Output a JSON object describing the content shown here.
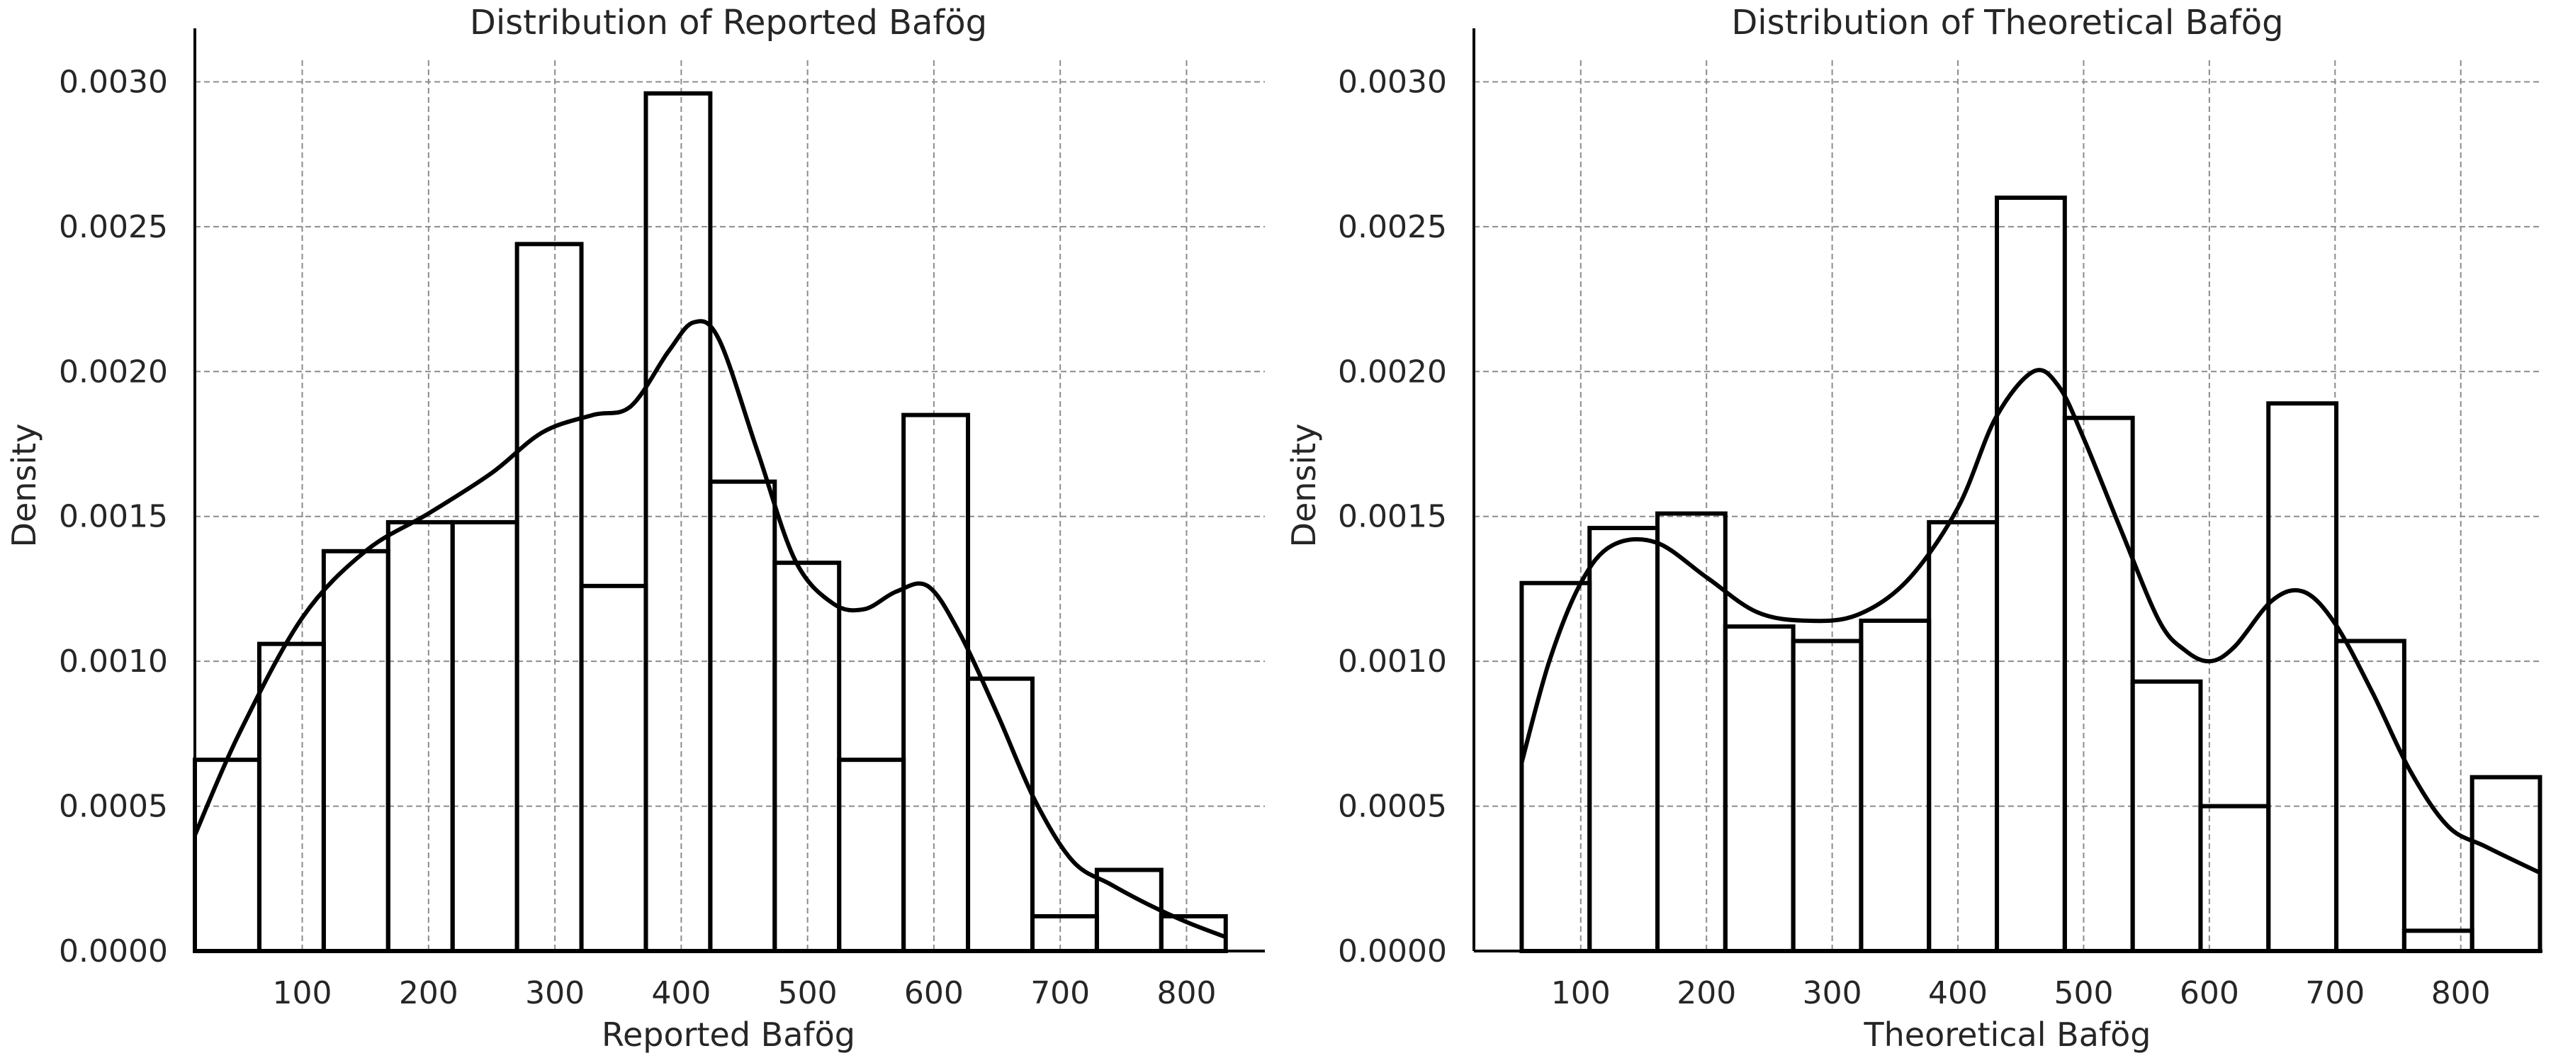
{
  "chart_data": [
    {
      "type": "bar",
      "subtype": "histogram-with-kde",
      "title": "Distribution of Reported Bafög",
      "xlabel": "Reported Bafög",
      "ylabel": "Density",
      "xlim": [
        15,
        862
      ],
      "ylim": [
        0,
        0.00305
      ],
      "xticks": [
        100,
        200,
        300,
        400,
        500,
        600,
        700,
        800
      ],
      "xtick_labels": [
        "100",
        "200",
        "300",
        "400",
        "500",
        "600",
        "700",
        "800"
      ],
      "yticks": [
        0,
        0.0005,
        0.001,
        0.0015,
        0.002,
        0.0025,
        0.003
      ],
      "ytick_labels": [
        "0.0000",
        "0.0005",
        "0.0010",
        "0.0015",
        "0.0020",
        "0.0025",
        "0.0030"
      ],
      "grid": true,
      "bin_edges": [
        15,
        66,
        117,
        168,
        219,
        270,
        321,
        372,
        423,
        474,
        525,
        576,
        627,
        678,
        729,
        780,
        831
      ],
      "values": [
        0.00066,
        0.00106,
        0.00138,
        0.00148,
        0.00148,
        0.00244,
        0.00126,
        0.00296,
        0.00162,
        0.00134,
        0.00066,
        0.00185,
        0.00094,
        0.00012,
        0.00028,
        0.00012
      ],
      "kde": {
        "x": [
          15,
          50,
          100,
          150,
          200,
          250,
          290,
          330,
          360,
          390,
          410,
          430,
          460,
          490,
          520,
          545,
          570,
          595,
          620,
          650,
          680,
          710,
          740,
          770,
          800,
          830
        ],
        "y": [
          0.0004,
          0.00075,
          0.00115,
          0.00138,
          0.00151,
          0.00165,
          0.00179,
          0.00185,
          0.00188,
          0.00207,
          0.00217,
          0.00211,
          0.00173,
          0.00135,
          0.0012,
          0.00118,
          0.00124,
          0.00126,
          0.0011,
          0.00082,
          0.00052,
          0.00031,
          0.00023,
          0.00016,
          0.0001,
          5e-05
        ]
      }
    },
    {
      "type": "bar",
      "subtype": "histogram-with-kde",
      "title": "Distribution of Theoretical Bafög",
      "xlabel": "Theoretical Bafög",
      "ylabel": "Density",
      "xlim": [
        15,
        865
      ],
      "ylim": [
        0,
        0.00305
      ],
      "xticks": [
        100,
        200,
        300,
        400,
        500,
        600,
        700,
        800
      ],
      "xtick_labels": [
        "100",
        "200",
        "300",
        "400",
        "500",
        "600",
        "700",
        "800"
      ],
      "yticks": [
        0,
        0.0005,
        0.001,
        0.0015,
        0.002,
        0.0025,
        0.003
      ],
      "ytick_labels": [
        "0.0000",
        "0.0005",
        "0.0010",
        "0.0015",
        "0.0020",
        "0.0025",
        "0.0030"
      ],
      "grid": true,
      "bin_edges": [
        53,
        107,
        161,
        215,
        269,
        323,
        377,
        431,
        485,
        539,
        593,
        647,
        701,
        755,
        809,
        863
      ],
      "values": [
        0.00127,
        0.00146,
        0.00151,
        0.00112,
        0.00107,
        0.00114,
        0.00148,
        0.0026,
        0.00184,
        0.00093,
        0.0005,
        0.00189,
        0.00107,
        7e-05,
        0.0006
      ],
      "kde": {
        "x": [
          53,
          75,
          100,
          125,
          160,
          200,
          240,
          280,
          320,
          360,
          400,
          430,
          460,
          480,
          500,
          530,
          560,
          580,
          600,
          620,
          650,
          675,
          700,
          730,
          760,
          790,
          820,
          863
        ],
        "y": [
          0.00065,
          0.001,
          0.00127,
          0.0014,
          0.00141,
          0.00129,
          0.00117,
          0.00114,
          0.00116,
          0.00128,
          0.00153,
          0.00184,
          0.002,
          0.00195,
          0.00177,
          0.00145,
          0.00114,
          0.00104,
          0.001,
          0.00105,
          0.00121,
          0.00124,
          0.00113,
          0.00089,
          0.00062,
          0.00043,
          0.00036,
          0.00027
        ]
      }
    }
  ]
}
